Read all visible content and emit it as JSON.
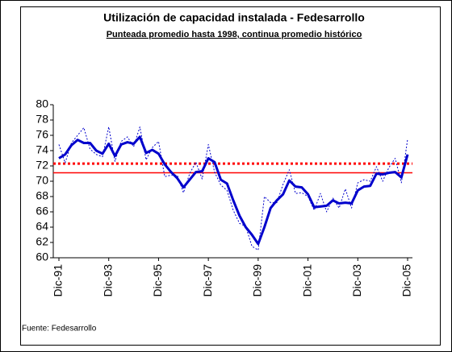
{
  "chart_data": {
    "type": "line",
    "title": "Utilización de capacidad instalada - Fedesarrollo",
    "subtitle": "Punteada promedio hasta 1998, continua promedio histórico",
    "source": "Fuente: Fedesarrollo",
    "categories": [
      "Dic-91",
      null,
      null,
      null,
      null,
      null,
      null,
      null,
      "Dic-93",
      null,
      null,
      null,
      null,
      null,
      null,
      null,
      "Dic-95",
      null,
      null,
      null,
      null,
      null,
      null,
      null,
      "Dic-97",
      null,
      null,
      null,
      null,
      null,
      null,
      null,
      "Dic-99",
      null,
      null,
      null,
      null,
      null,
      null,
      null,
      "Dic-01",
      null,
      null,
      null,
      null,
      null,
      null,
      null,
      "Dic-03",
      null,
      null,
      null,
      null,
      null,
      null,
      null,
      "Dic-05"
    ],
    "series": [
      {
        "color": "#0000cc",
        "style": "solid",
        "values": [
          73.0,
          73.5,
          74.7,
          75.4,
          75.0,
          75.0,
          74.0,
          73.6,
          74.9,
          73.3,
          74.8,
          75.1,
          74.9,
          75.8,
          73.7,
          74.1,
          73.6,
          72.2,
          71.2,
          70.4,
          69.2,
          70.2,
          71.2,
          71.3,
          73.0,
          72.5,
          70.2,
          69.7,
          67.5,
          65.5,
          64.0,
          63.0,
          61.8,
          64.0,
          66.5,
          67.5,
          68.3,
          70.1,
          69.3,
          69.2,
          68.3,
          66.6,
          66.7,
          66.8,
          67.5,
          67.1,
          67.2,
          67.1,
          68.8,
          69.3,
          69.4,
          71.0,
          70.9,
          71.1,
          71.2,
          70.5,
          73.5
        ]
      },
      {
        "color": "#0000cc",
        "style": "dotted",
        "values": [
          74.8,
          72.4,
          75.0,
          76.0,
          77.0,
          74.2,
          73.5,
          73.2,
          77.1,
          72.6,
          75.2,
          75.8,
          74.5,
          77.1,
          72.8,
          74.4,
          75.2,
          70.6,
          70.8,
          70.8,
          68.5,
          71.0,
          72.5,
          70.3,
          74.8,
          71.2,
          69.5,
          68.8,
          66.2,
          64.5,
          64.1,
          61.5,
          61.0,
          68.0,
          67.2,
          67.2,
          69.6,
          71.5,
          68.4,
          68.5,
          68.0,
          66.2,
          68.4,
          66.0,
          67.8,
          66.5,
          69.0,
          66.5,
          69.8,
          70.2,
          70.0,
          71.9,
          70.0,
          71.8,
          73.0,
          69.8,
          75.5
        ]
      }
    ],
    "hlines": [
      {
        "value": 72.3,
        "color": "#ff0000",
        "style": "dotted"
      },
      {
        "value": 71.1,
        "color": "#ff0000",
        "style": "solid"
      }
    ],
    "ylim": [
      60,
      80
    ],
    "yticks": [
      60,
      62,
      64,
      66,
      68,
      70,
      72,
      74,
      76,
      78,
      80
    ]
  }
}
